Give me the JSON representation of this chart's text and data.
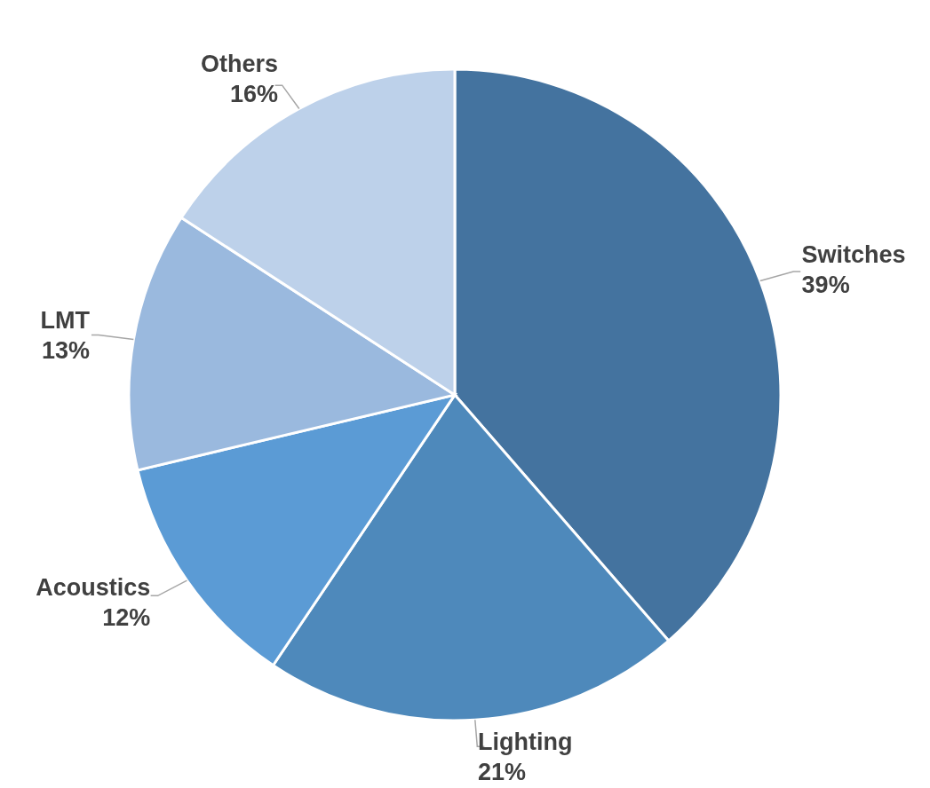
{
  "chart_data": {
    "type": "pie",
    "categories": [
      "Switches",
      "Lighting",
      "Acoustics",
      "LMT",
      "Others"
    ],
    "values": [
      39,
      21,
      12,
      13,
      16
    ],
    "value_labels": [
      "39%",
      "21%",
      "12%",
      "13%",
      "16%"
    ],
    "colors": [
      "#44739f",
      "#4e89bb",
      "#5b9bd5",
      "#9ab9de",
      "#bdd1ea"
    ]
  }
}
